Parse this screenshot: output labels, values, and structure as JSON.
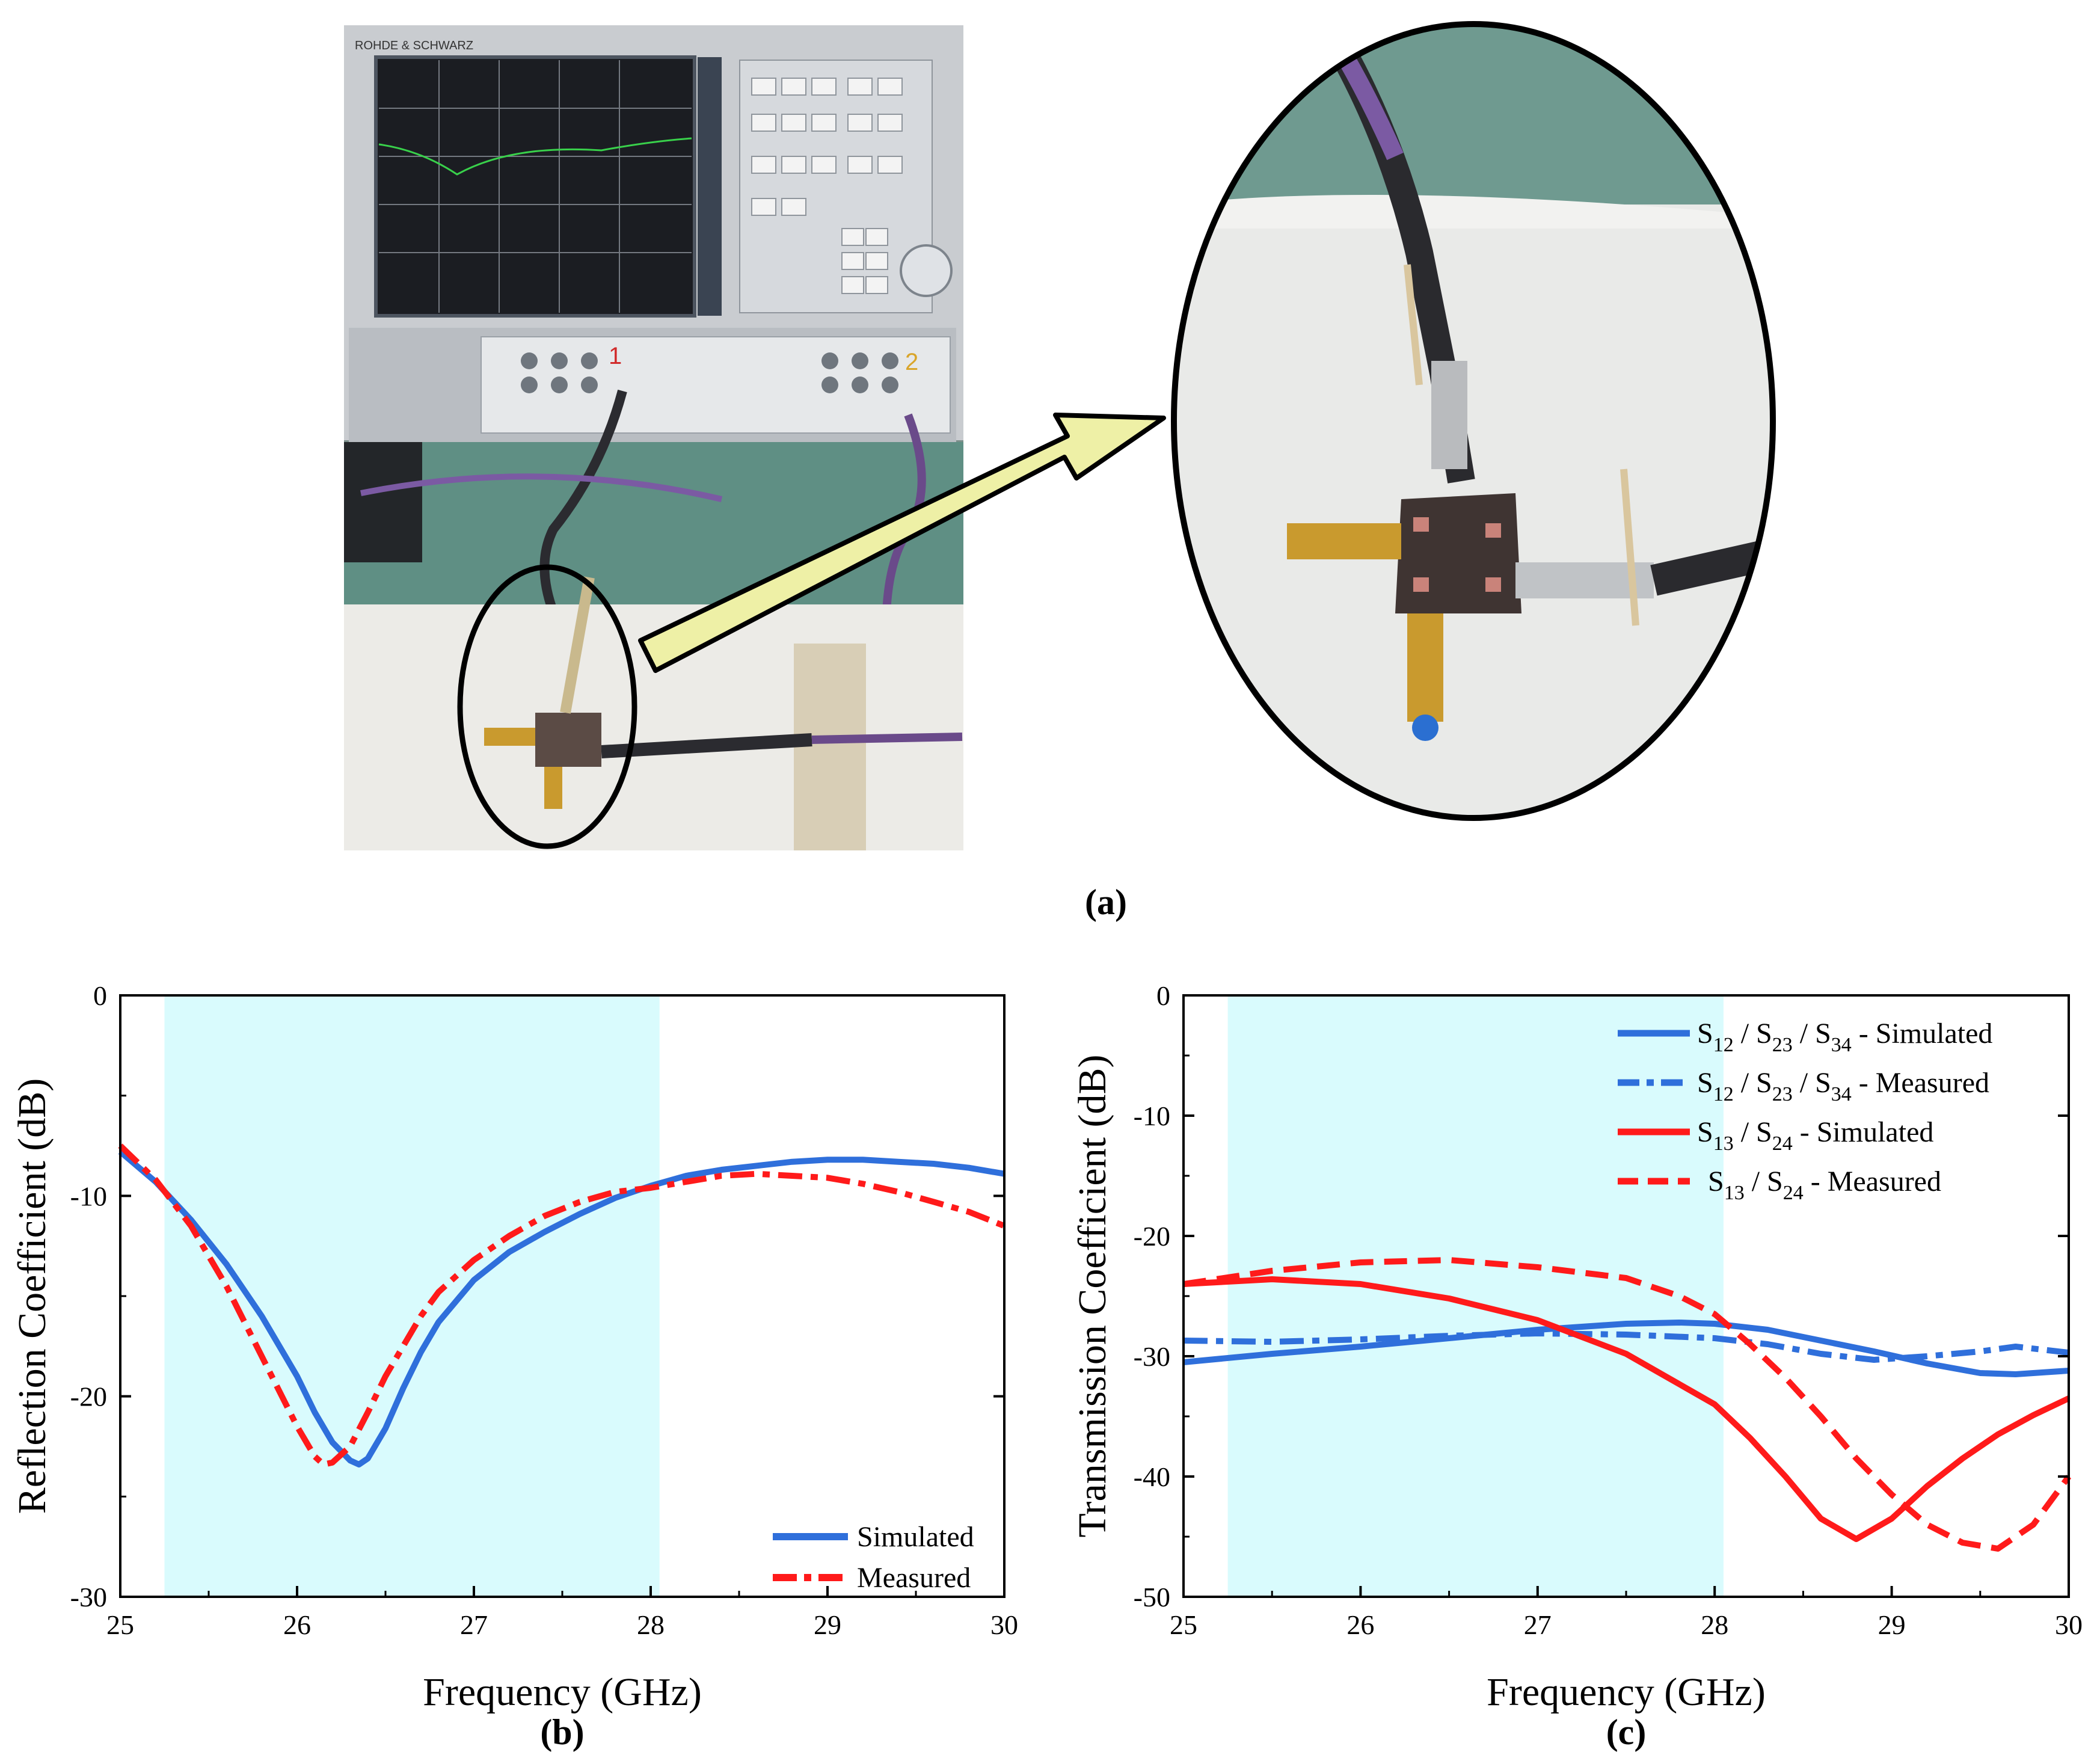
{
  "figure": {
    "panel_labels": {
      "a": "(a)",
      "b": "(b)",
      "c": "(c)"
    },
    "photo_left": {
      "analyzer_brand": "ROHDE & SCHWARZ",
      "port_1": "1",
      "port_2": "2"
    }
  },
  "colors": {
    "band_fill": "#d9fbfd",
    "blue": "#2f6fdb",
    "red": "#ff1a1a",
    "arrow_fill": "#eef0a6"
  },
  "chart_data": [
    {
      "type": "line",
      "panel": "b",
      "xlabel": "Frequency (GHz)",
      "ylabel": "Reflection Coefficient (dB)",
      "xlim": [
        25,
        30
      ],
      "ylim": [
        -30,
        0
      ],
      "xticks": [
        "25",
        "26",
        "27",
        "28",
        "29",
        "30"
      ],
      "yticks": [
        "0",
        "-10",
        "-20",
        "-30"
      ],
      "grid": false,
      "highlight_band": [
        25.25,
        28.05
      ],
      "legend_position": "bottom-right",
      "series": [
        {
          "name": "Simulated",
          "style": "solid",
          "color": "#2f6fdb",
          "x": [
            25,
            25.2,
            25.4,
            25.6,
            25.8,
            26.0,
            26.1,
            26.2,
            26.3,
            26.35,
            26.4,
            26.5,
            26.6,
            26.7,
            26.8,
            27.0,
            27.2,
            27.4,
            27.6,
            27.8,
            28.0,
            28.2,
            28.4,
            28.6,
            28.8,
            29.0,
            29.2,
            29.4,
            29.6,
            29.8,
            30.0
          ],
          "y": [
            -7.8,
            -9.3,
            -11.2,
            -13.4,
            -16.0,
            -19.0,
            -20.8,
            -22.3,
            -23.2,
            -23.4,
            -23.1,
            -21.6,
            -19.6,
            -17.8,
            -16.3,
            -14.2,
            -12.8,
            -11.8,
            -10.9,
            -10.1,
            -9.5,
            -9.0,
            -8.7,
            -8.5,
            -8.3,
            -8.2,
            -8.2,
            -8.3,
            -8.4,
            -8.6,
            -8.9
          ]
        },
        {
          "name": "Measured",
          "style": "dash-dot",
          "color": "#ff1a1a",
          "x": [
            25,
            25.2,
            25.4,
            25.6,
            25.8,
            26.0,
            26.1,
            26.15,
            26.2,
            26.3,
            26.4,
            26.5,
            26.6,
            26.7,
            26.8,
            27.0,
            27.2,
            27.4,
            27.6,
            27.8,
            28.0,
            28.2,
            28.4,
            28.6,
            28.8,
            29.0,
            29.2,
            29.4,
            29.6,
            29.8,
            30.0
          ],
          "y": [
            -7.5,
            -9.2,
            -11.5,
            -14.5,
            -18.0,
            -21.5,
            -23.0,
            -23.4,
            -23.3,
            -22.5,
            -20.8,
            -19.0,
            -17.5,
            -16.0,
            -14.8,
            -13.2,
            -12.0,
            -11.0,
            -10.3,
            -9.8,
            -9.6,
            -9.3,
            -9.0,
            -8.9,
            -9.0,
            -9.1,
            -9.4,
            -9.8,
            -10.3,
            -10.8,
            -11.5
          ]
        }
      ]
    },
    {
      "type": "line",
      "panel": "c",
      "xlabel": "Frequency (GHz)",
      "ylabel": "Transmission Coefficient (dB)",
      "xlim": [
        25,
        30
      ],
      "ylim": [
        -50,
        0
      ],
      "xticks": [
        "25",
        "26",
        "27",
        "28",
        "29",
        "30"
      ],
      "yticks": [
        "0",
        "-10",
        "-20",
        "-30",
        "-40",
        "-50"
      ],
      "grid": false,
      "highlight_band": [
        25.25,
        28.05
      ],
      "legend_position": "top-right",
      "series": [
        {
          "name_parts": [
            "S",
            "12",
            " / S",
            "23",
            " / S",
            "34",
            " - Simulated"
          ],
          "style": "solid",
          "color": "#2f6fdb",
          "x": [
            25,
            25.5,
            26,
            26.5,
            27,
            27.5,
            27.8,
            28,
            28.3,
            28.6,
            28.9,
            29.2,
            29.5,
            29.7,
            30
          ],
          "y": [
            -30.5,
            -29.8,
            -29.2,
            -28.5,
            -27.8,
            -27.3,
            -27.2,
            -27.3,
            -27.8,
            -28.7,
            -29.6,
            -30.6,
            -31.4,
            -31.5,
            -31.2
          ]
        },
        {
          "name_parts": [
            "S",
            "12",
            " /  S",
            "23",
            " / S",
            "34",
            " - Measured"
          ],
          "style": "dash-dot",
          "color": "#2f6fdb",
          "x": [
            25,
            25.5,
            26,
            26.5,
            27,
            27.5,
            28,
            28.3,
            28.6,
            28.9,
            29.2,
            29.5,
            29.7,
            30
          ],
          "y": [
            -28.7,
            -28.8,
            -28.6,
            -28.3,
            -28.1,
            -28.2,
            -28.5,
            -29.0,
            -29.8,
            -30.3,
            -30.0,
            -29.6,
            -29.2,
            -29.7
          ]
        },
        {
          "name_parts": [
            "S",
            "13",
            " / S",
            "24",
            " - Simulated"
          ],
          "style": "solid",
          "color": "#ff1a1a",
          "x": [
            25,
            25.5,
            26,
            26.5,
            27,
            27.5,
            28,
            28.2,
            28.4,
            28.6,
            28.8,
            29.0,
            29.2,
            29.4,
            29.6,
            29.8,
            30
          ],
          "y": [
            -24.0,
            -23.6,
            -24.0,
            -25.2,
            -27.0,
            -29.8,
            -34.0,
            -36.8,
            -40.0,
            -43.5,
            -45.2,
            -43.5,
            -40.8,
            -38.5,
            -36.5,
            -34.9,
            -33.5
          ]
        },
        {
          "name_parts": [
            "S",
            "13",
            " / S",
            "24",
            " - Measured"
          ],
          "style": "dashed",
          "color": "#ff1a1a",
          "x": [
            25,
            25.5,
            26,
            26.5,
            27,
            27.5,
            27.8,
            28,
            28.2,
            28.4,
            28.6,
            28.8,
            29.0,
            29.2,
            29.4,
            29.6,
            29.8,
            30
          ],
          "y": [
            -24.0,
            -22.9,
            -22.2,
            -22.0,
            -22.6,
            -23.5,
            -25.0,
            -26.5,
            -29.0,
            -31.8,
            -35.0,
            -38.5,
            -41.5,
            -44.0,
            -45.5,
            -46.0,
            -44.0,
            -40.0
          ]
        }
      ]
    }
  ]
}
